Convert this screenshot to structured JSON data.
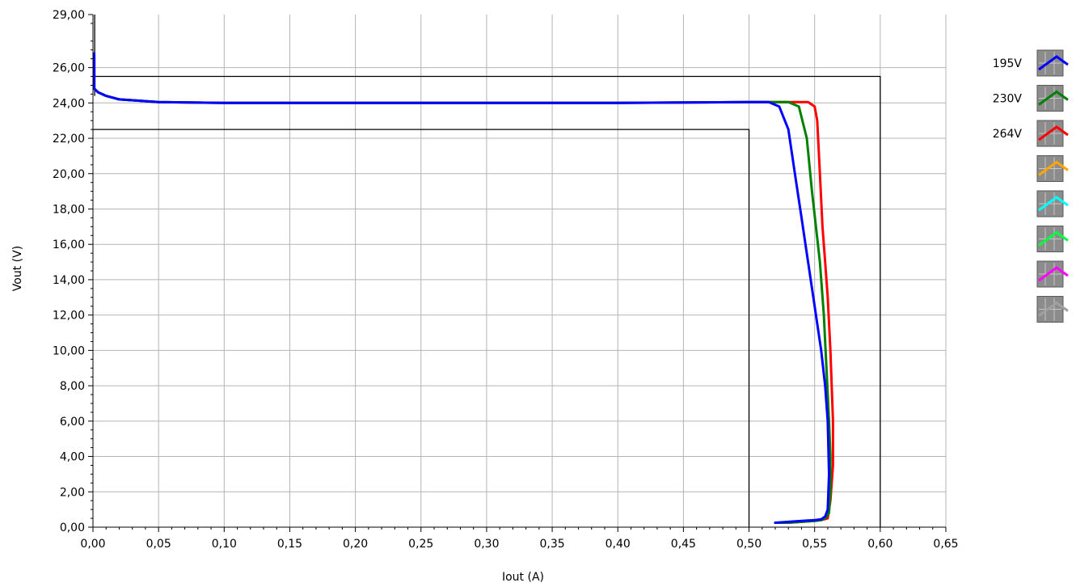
{
  "chart_data": {
    "type": "line",
    "xlabel": "Iout (A)",
    "ylabel": "Vout (V)",
    "xlim": [
      0,
      0.65
    ],
    "ylim": [
      0,
      29
    ],
    "grid": true,
    "legend_placement": "right",
    "x_ticks": [
      "0,00",
      "0,05",
      "0,10",
      "0,15",
      "0,20",
      "0,25",
      "0,30",
      "0,35",
      "0,40",
      "0,45",
      "0,50",
      "0,55",
      "0,60",
      "0,65"
    ],
    "y_ticks": [
      "0,00",
      "2,00",
      "4,00",
      "6,00",
      "8,00",
      "10,00",
      "12,00",
      "14,00",
      "16,00",
      "18,00",
      "20,00",
      "22,00",
      "24,00",
      "26,00",
      "29,00"
    ],
    "y_tick_values": [
      0,
      2,
      4,
      6,
      8,
      10,
      12,
      14,
      16,
      18,
      20,
      22,
      24,
      26,
      29
    ],
    "limit_boxes": [
      {
        "x": [
          0.0,
          0.6,
          0.6
        ],
        "y": [
          25.5,
          25.5,
          0
        ]
      },
      {
        "x": [
          0.0,
          0.5,
          0.5
        ],
        "y": [
          22.5,
          22.5,
          0
        ]
      }
    ],
    "limit_marker": {
      "x": [
        0.0013,
        0.0013
      ],
      "y": [
        29,
        24.4
      ]
    },
    "series": [
      {
        "name": "264V",
        "color": "#ff0000",
        "x": [
          0.001,
          0.001,
          0.004,
          0.01,
          0.02,
          0.05,
          0.1,
          0.2,
          0.3,
          0.4,
          0.5,
          0.52,
          0.535,
          0.545,
          0.55,
          0.552,
          0.554,
          0.556,
          0.558,
          0.56,
          0.562,
          0.564,
          0.564,
          0.562,
          0.56,
          0.555,
          0.55,
          0.54,
          0.53,
          0.52
        ],
        "y": [
          26.5,
          24.8,
          24.6,
          24.4,
          24.2,
          24.05,
          24.0,
          24.0,
          24.0,
          24.0,
          24.05,
          24.05,
          24.05,
          24.05,
          23.8,
          23.0,
          20.0,
          17.0,
          15.0,
          13.0,
          10.0,
          6.0,
          3.5,
          1.5,
          0.5,
          0.4,
          0.35,
          0.3,
          0.25,
          0.25
        ]
      },
      {
        "name": "230V",
        "color": "#008000",
        "x": [
          0.001,
          0.001,
          0.004,
          0.01,
          0.02,
          0.05,
          0.1,
          0.2,
          0.3,
          0.4,
          0.5,
          0.52,
          0.53,
          0.538,
          0.544,
          0.548,
          0.551,
          0.554,
          0.557,
          0.559,
          0.561,
          0.562,
          0.562,
          0.561,
          0.558,
          0.555,
          0.55,
          0.54,
          0.53,
          0.52
        ],
        "y": [
          26.0,
          24.8,
          24.6,
          24.4,
          24.2,
          24.05,
          24.0,
          24.0,
          24.0,
          24.0,
          24.05,
          24.05,
          24.05,
          23.8,
          22.0,
          19.0,
          17.0,
          15.0,
          12.0,
          9.0,
          6.0,
          4.0,
          2.0,
          0.8,
          0.5,
          0.4,
          0.35,
          0.3,
          0.25,
          0.25
        ]
      },
      {
        "name": "195V",
        "color": "#0000ff",
        "x": [
          0.001,
          0.001,
          0.004,
          0.01,
          0.02,
          0.05,
          0.1,
          0.2,
          0.3,
          0.4,
          0.5,
          0.515,
          0.523,
          0.53,
          0.535,
          0.54,
          0.545,
          0.55,
          0.555,
          0.558,
          0.56,
          0.561,
          0.56,
          0.558,
          0.555,
          0.55,
          0.54,
          0.53,
          0.52
        ],
        "y": [
          26.8,
          24.8,
          24.6,
          24.4,
          24.2,
          24.05,
          24.0,
          24.0,
          24.0,
          24.0,
          24.05,
          24.05,
          23.8,
          22.5,
          20.0,
          17.5,
          15.0,
          12.5,
          10.0,
          8.0,
          6.0,
          3.0,
          1.0,
          0.6,
          0.45,
          0.4,
          0.35,
          0.3,
          0.25
        ]
      }
    ],
    "legend_entries": [
      {
        "label": "195V",
        "color": "#0000ff"
      },
      {
        "label": "230V",
        "color": "#008000"
      },
      {
        "label": "264V",
        "color": "#ff0000"
      },
      {
        "label": "",
        "color": "#ffa500"
      },
      {
        "label": "",
        "color": "#00ffff"
      },
      {
        "label": "",
        "color": "#00ff40"
      },
      {
        "label": "",
        "color": "#ff00ff"
      },
      {
        "label": "",
        "color": "#a0a0a0"
      }
    ]
  }
}
